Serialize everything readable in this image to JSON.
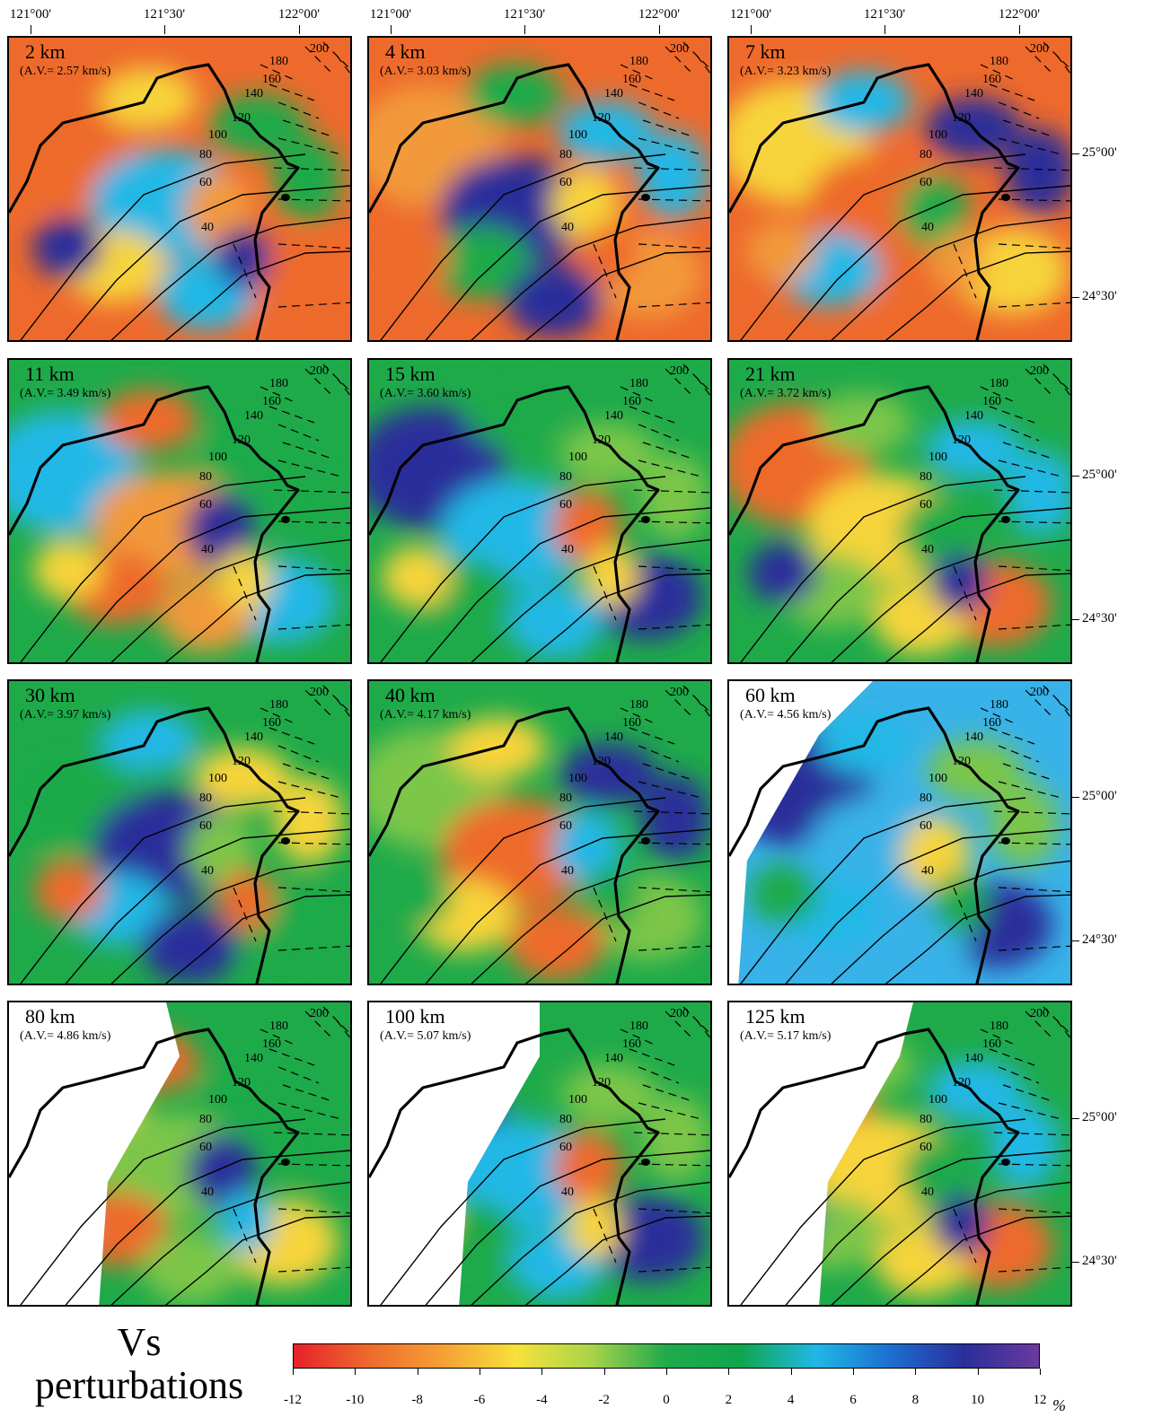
{
  "lon_labels": [
    "121°00'",
    "121°30'",
    "122°00'"
  ],
  "lat_labels": [
    "25°00'",
    "24°30'"
  ],
  "contour_labels": [
    "200",
    "180",
    "160",
    "140",
    "120",
    "100",
    "80",
    "60",
    "40"
  ],
  "panels": [
    {
      "depth": "2 km",
      "av": "(A.V.= 2.57 km/s)",
      "tone": "orange"
    },
    {
      "depth": "4 km",
      "av": "(A.V.= 3.03 km/s)",
      "tone": "orange"
    },
    {
      "depth": "7 km",
      "av": "(A.V.= 3.23 km/s)",
      "tone": "orange"
    },
    {
      "depth": "11 km",
      "av": "(A.V.= 3.49 km/s)",
      "tone": "mixed"
    },
    {
      "depth": "15 km",
      "av": "(A.V.= 3.60 km/s)",
      "tone": "green"
    },
    {
      "depth": "21 km",
      "av": "(A.V.= 3.72 km/s)",
      "tone": "green"
    },
    {
      "depth": "30 km",
      "av": "(A.V.= 3.97 km/s)",
      "tone": "green"
    },
    {
      "depth": "40 km",
      "av": "(A.V.= 4.17 km/s)",
      "tone": "green"
    },
    {
      "depth": "60 km",
      "av": "(A.V.= 4.56 km/s)",
      "tone": "blue"
    },
    {
      "depth": "80 km",
      "av": "(A.V.= 4.86 km/s)",
      "tone": "green"
    },
    {
      "depth": "100 km",
      "av": "(A.V.= 5.07 km/s)",
      "tone": "green"
    },
    {
      "depth": "125 km",
      "av": "(A.V.= 5.17 km/s)",
      "tone": "green"
    }
  ],
  "title": {
    "line1": "Vs",
    "line2": "perturbations"
  },
  "colorbar": {
    "ticks": [
      "-12",
      "-10",
      "-8",
      "-6",
      "-4",
      "-2",
      "0",
      "2",
      "4",
      "6",
      "8",
      "10",
      "12"
    ],
    "unit": "%",
    "colors": [
      "#e8202a",
      "#ee6a2c",
      "#f5a035",
      "#f7e13a",
      "#a8d44a",
      "#1faa4a",
      "#0fa64e",
      "#20b8e6",
      "#1c6fd0",
      "#2a2e9a",
      "#6a3a9e"
    ]
  }
}
